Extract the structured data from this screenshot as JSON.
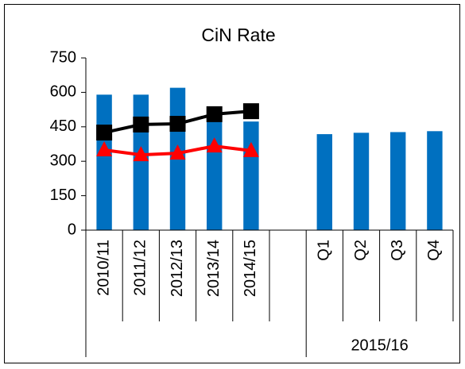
{
  "chart_data": {
    "type": "bar_line",
    "title": "CiN Rate",
    "categories": [
      "2010/11",
      "2011/12",
      "2012/13",
      "2013/14",
      "2014/15",
      null,
      "Q1",
      "Q2",
      "Q3",
      "Q4"
    ],
    "category_groups": [
      {
        "label": null,
        "span": 6
      },
      {
        "label": "2015/16",
        "span": 4
      }
    ],
    "series": [
      {
        "kind": "bar",
        "color": "#0070c0",
        "values": [
          590,
          590,
          620,
          480,
          473,
          null,
          418,
          424,
          427,
          431
        ]
      },
      {
        "kind": "line",
        "marker": "square",
        "color": "#000000",
        "values": [
          425,
          460,
          463,
          505,
          518,
          null,
          null,
          null,
          null,
          null
        ]
      },
      {
        "kind": "line",
        "marker": "triangle",
        "color": "#ff0000",
        "values": [
          349,
          328,
          335,
          366,
          346,
          null,
          null,
          null,
          null,
          null
        ]
      }
    ],
    "ylim": [
      0,
      750
    ],
    "yticks": [
      0,
      150,
      300,
      450,
      600,
      750
    ],
    "grid": false
  }
}
